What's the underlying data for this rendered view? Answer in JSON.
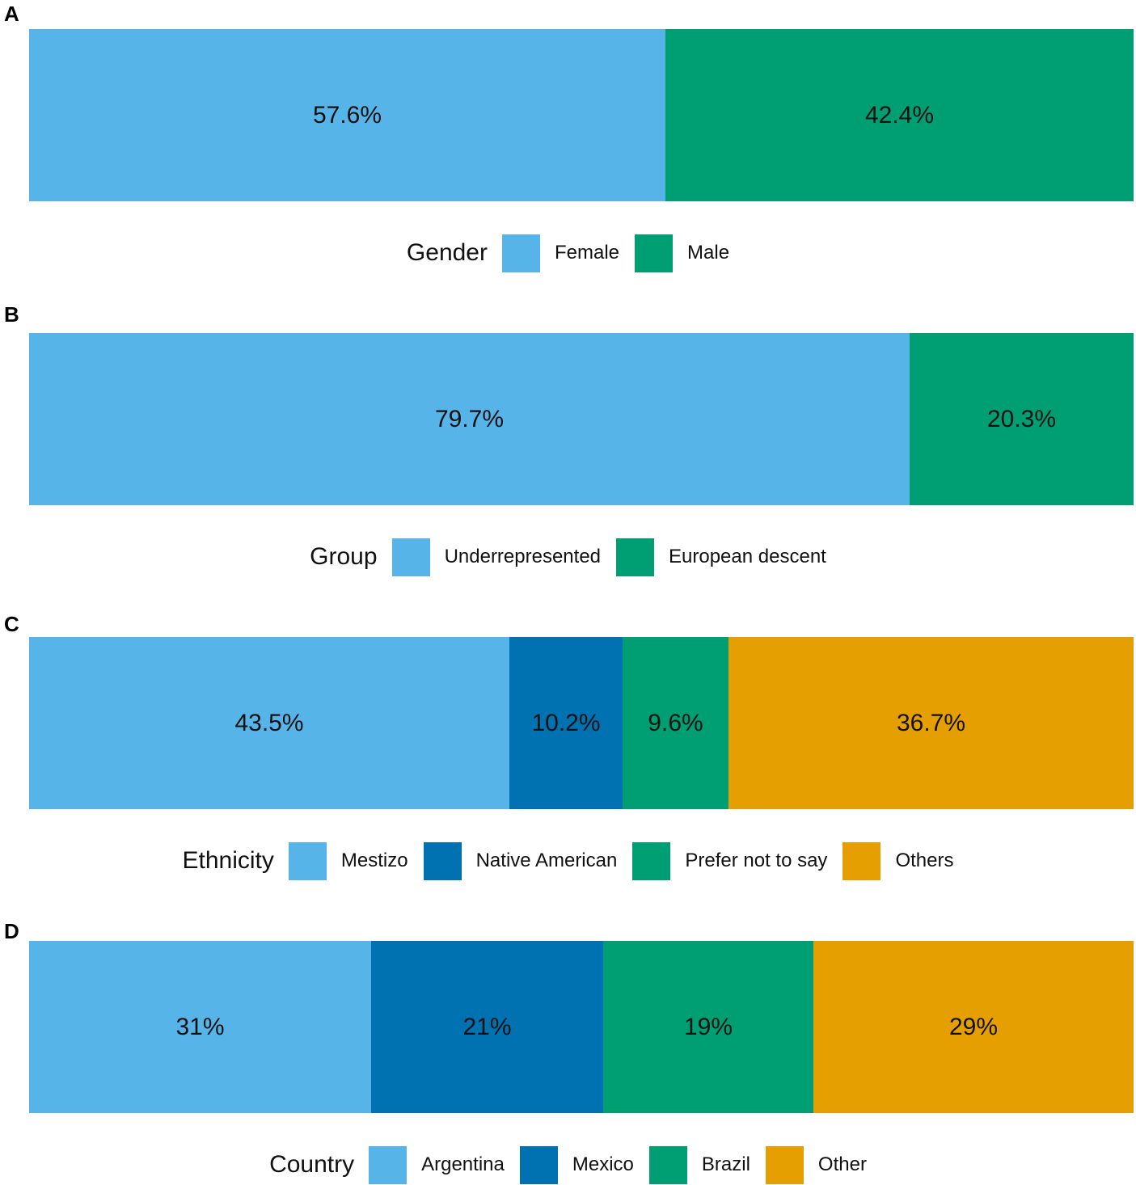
{
  "chart_data": [
    {
      "type": "bar",
      "orientation": "horizontal-stacked-100",
      "panel": "A",
      "legend_title": "Gender",
      "categories": [
        "Female",
        "Male"
      ],
      "values": [
        57.6,
        42.4
      ],
      "labels": [
        "57.6%",
        "42.4%"
      ],
      "colors": [
        "#56B4E9",
        "#009E73"
      ],
      "xlim": [
        0,
        100
      ]
    },
    {
      "type": "bar",
      "orientation": "horizontal-stacked-100",
      "panel": "B",
      "legend_title": "Group",
      "categories": [
        "Underrepresented",
        "European descent"
      ],
      "values": [
        79.7,
        20.3
      ],
      "labels": [
        "79.7%",
        "20.3%"
      ],
      "colors": [
        "#56B4E9",
        "#009E73"
      ],
      "xlim": [
        0,
        100
      ]
    },
    {
      "type": "bar",
      "orientation": "horizontal-stacked-100",
      "panel": "C",
      "legend_title": "Ethnicity",
      "categories": [
        "Mestizo",
        "Native American",
        "Prefer not to say",
        "Others"
      ],
      "values": [
        43.5,
        10.2,
        9.6,
        36.7
      ],
      "labels": [
        "43.5%",
        "10.2%",
        "9.6%",
        "36.7%"
      ],
      "colors": [
        "#56B4E9",
        "#0072B2",
        "#009E73",
        "#E69F00"
      ],
      "xlim": [
        0,
        100
      ]
    },
    {
      "type": "bar",
      "orientation": "horizontal-stacked-100",
      "panel": "D",
      "legend_title": "Country",
      "categories": [
        "Argentina",
        "Mexico",
        "Brazil",
        "Other"
      ],
      "values": [
        31,
        21,
        19,
        29
      ],
      "labels": [
        "31%",
        "21%",
        "19%",
        "29%"
      ],
      "colors": [
        "#56B4E9",
        "#0072B2",
        "#009E73",
        "#E69F00"
      ],
      "xlim": [
        0,
        100
      ]
    }
  ]
}
